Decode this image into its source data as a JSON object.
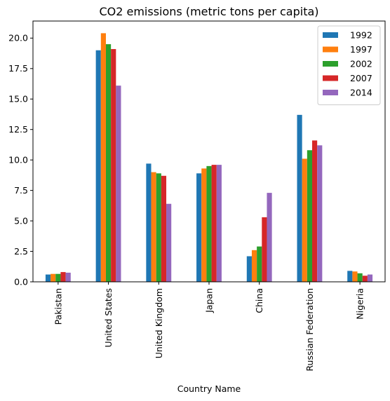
{
  "chart_data": {
    "type": "bar",
    "title": "CO2 emissions (metric tons per capita)",
    "xlabel": "Country Name",
    "ylabel": "",
    "ylim": [
      0,
      21.4
    ],
    "yticks": [
      "0.0",
      "2.5",
      "5.0",
      "7.5",
      "10.0",
      "12.5",
      "15.0",
      "17.5",
      "20.0"
    ],
    "legend_position": "top-right",
    "grid": false,
    "categories": [
      "Pakistan",
      "United States",
      "United Kingdom",
      "Japan",
      "China",
      "Russian Federation",
      "Nigeria"
    ],
    "series": [
      {
        "name": "1992",
        "color": "#1f77b4",
        "values": [
          0.6,
          19.0,
          9.7,
          8.9,
          2.1,
          13.7,
          0.9
        ]
      },
      {
        "name": "1997",
        "color": "#ff7f0e",
        "values": [
          0.65,
          20.4,
          9.0,
          9.3,
          2.6,
          10.1,
          0.85
        ]
      },
      {
        "name": "2002",
        "color": "#2ca02c",
        "values": [
          0.65,
          19.5,
          8.9,
          9.5,
          2.9,
          10.8,
          0.7
        ]
      },
      {
        "name": "2007",
        "color": "#d62728",
        "values": [
          0.8,
          19.1,
          8.7,
          9.6,
          5.3,
          11.6,
          0.5
        ]
      },
      {
        "name": "2014",
        "color": "#9467bd",
        "values": [
          0.75,
          16.1,
          6.4,
          9.6,
          7.3,
          11.2,
          0.6
        ]
      }
    ]
  }
}
